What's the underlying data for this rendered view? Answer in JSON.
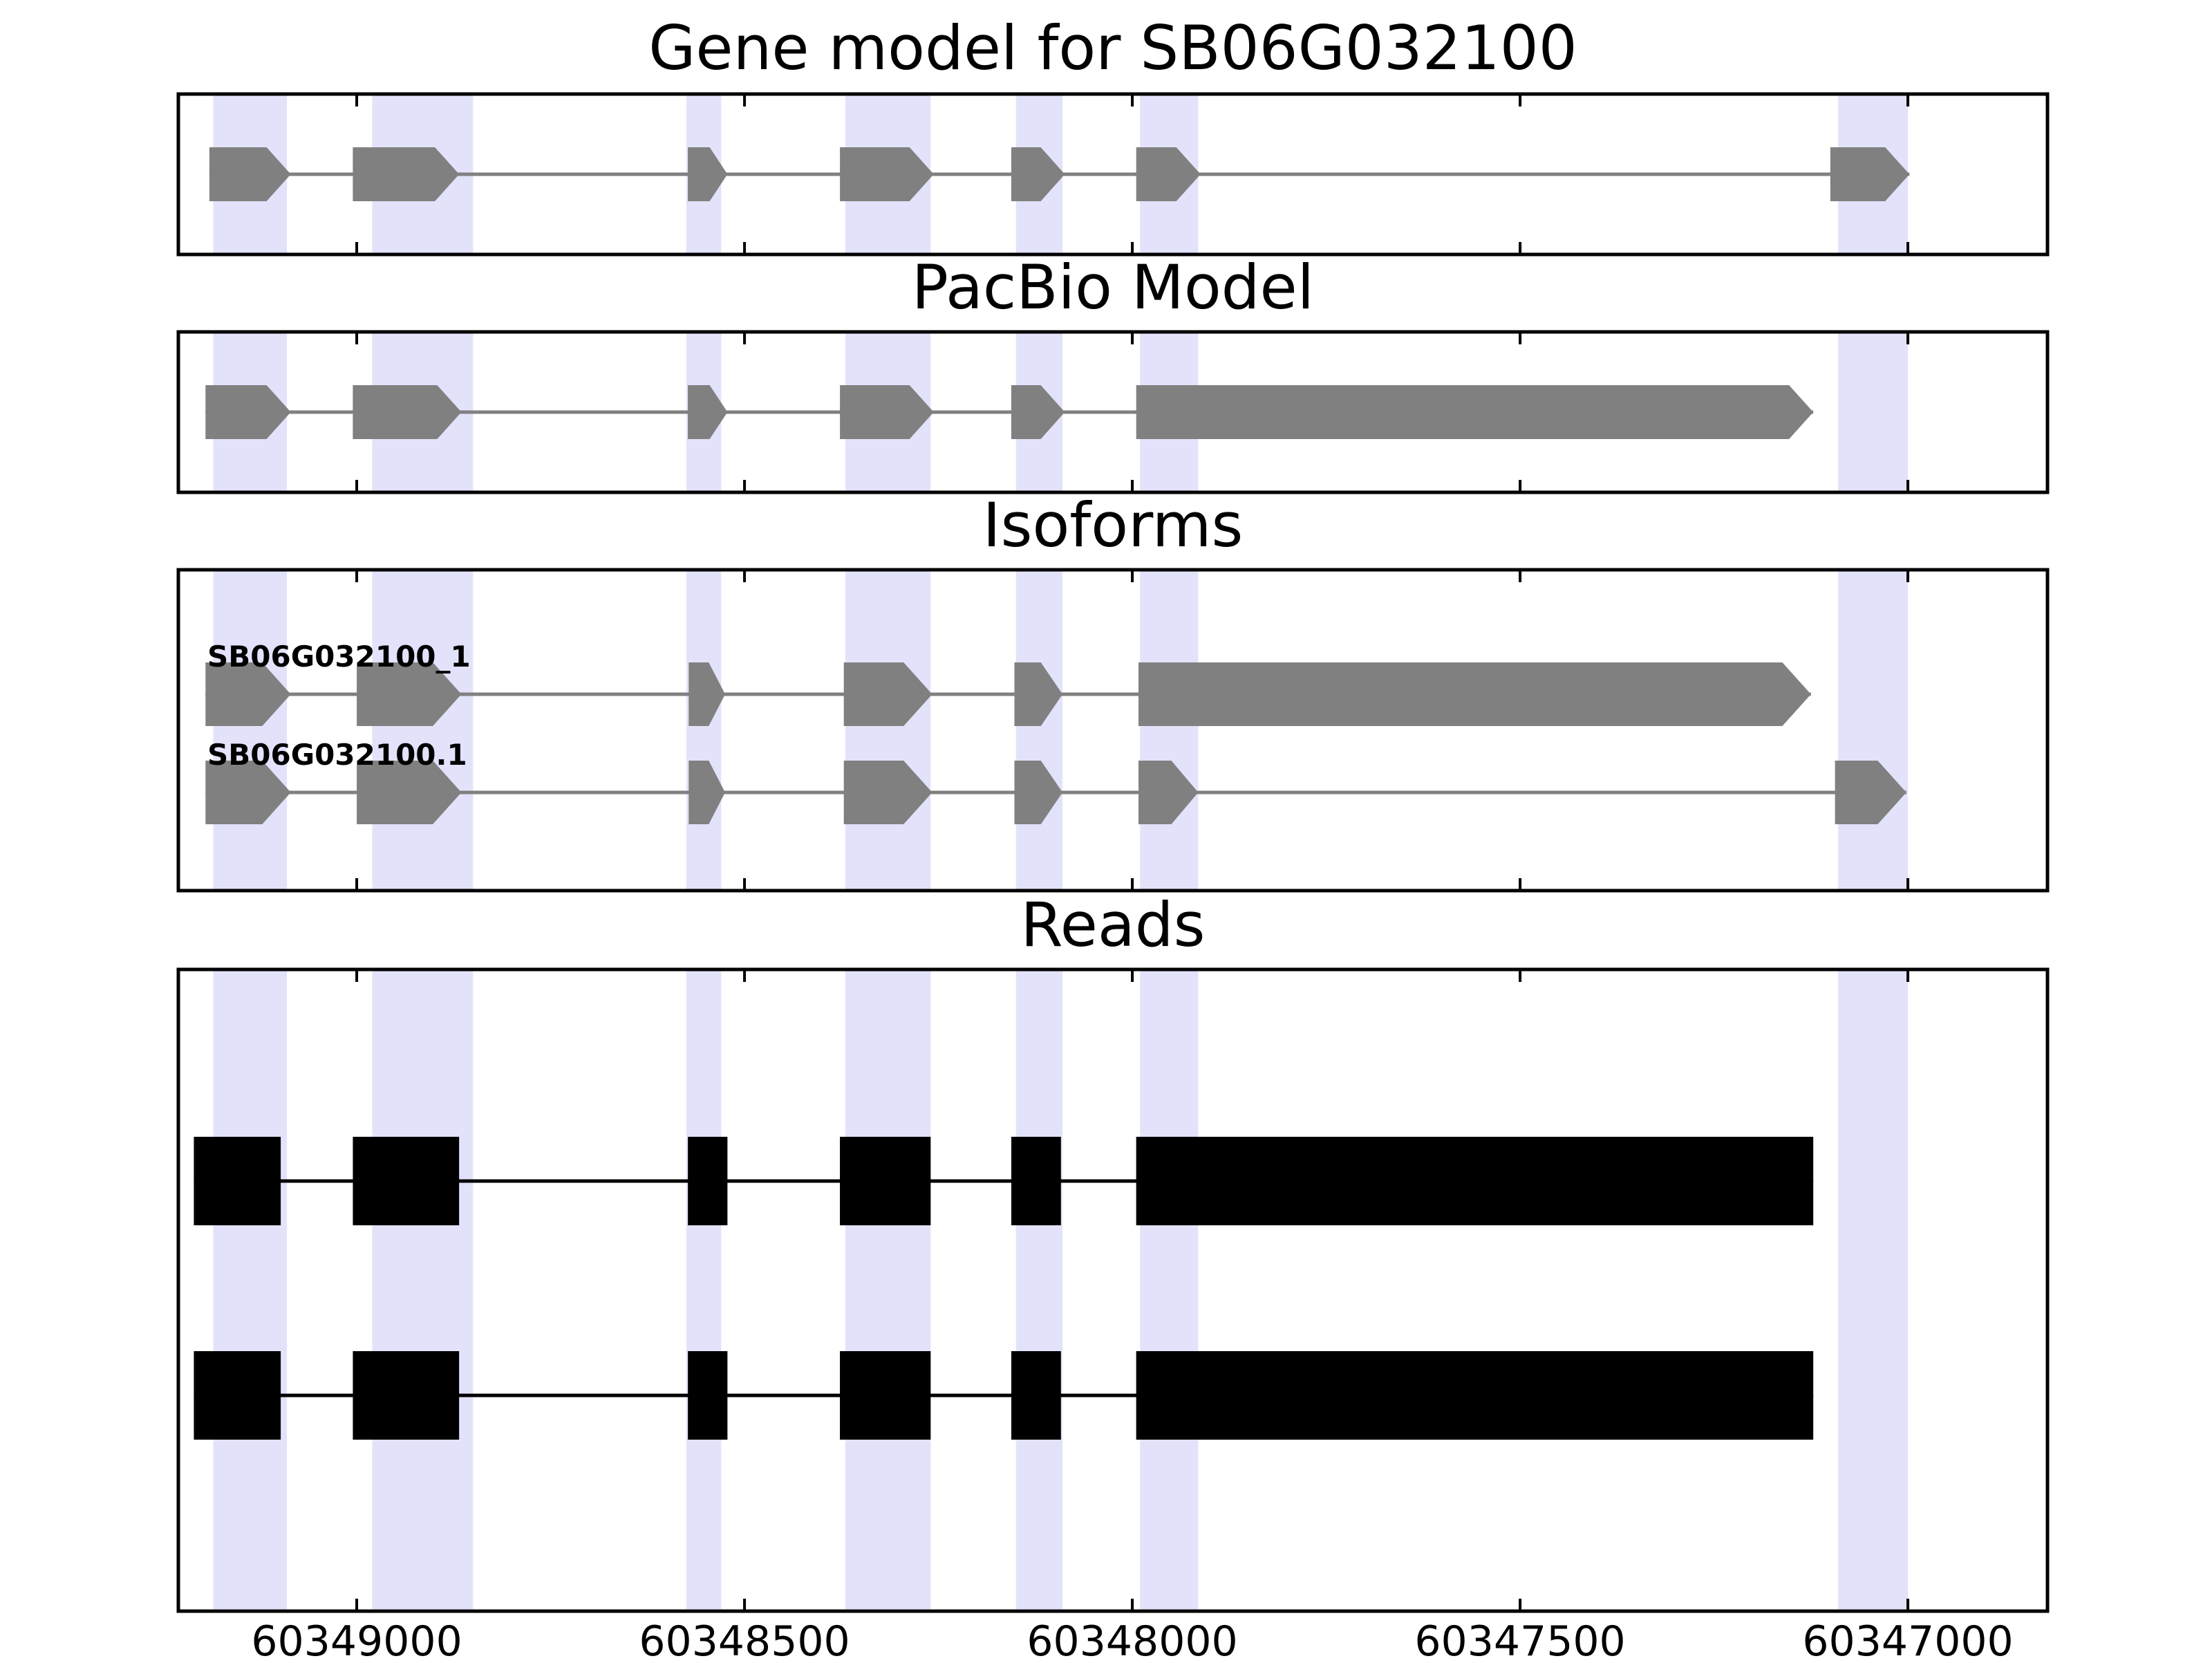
{
  "chart_data": {
    "type": "gene-structure",
    "x_axis": {
      "reversed": true,
      "xlim": [
        60349230,
        60346820
      ],
      "ticks": [
        60349000,
        60348500,
        60348000,
        60347500,
        60347000
      ],
      "tick_labels": [
        "60349000",
        "60348500",
        "60348000",
        "60347500",
        "60347000"
      ]
    },
    "exon_shading": [
      [
        60349185,
        60349090
      ],
      [
        60348980,
        60348850
      ],
      [
        60348575,
        60348530
      ],
      [
        60348370,
        60348260
      ],
      [
        60348150,
        60348090
      ],
      [
        60347990,
        60347915
      ],
      [
        60347090,
        60347000
      ]
    ],
    "panels": [
      {
        "title": "Gene model for SB06G032100",
        "kind": "gene_model",
        "models": [
          {
            "label": "",
            "exons": [
              [
                60349190,
                60349085
              ],
              [
                60349005,
                60348868
              ],
              [
                60348573,
                60348522
              ],
              [
                60348377,
                60348256
              ],
              [
                60348156,
                60348087
              ],
              [
                60347995,
                60347912
              ],
              [
                60347100,
                60346998
              ]
            ]
          }
        ]
      },
      {
        "title": "PacBio Model",
        "kind": "gene_model",
        "models": [
          {
            "label": "",
            "exons": [
              [
                60349195,
                60349085
              ],
              [
                60349005,
                60348865
              ],
              [
                60348573,
                60348522
              ],
              [
                60348377,
                60348256
              ],
              [
                60348156,
                60348087
              ],
              [
                60347995,
                60347122
              ]
            ]
          }
        ]
      },
      {
        "title": "Isoforms",
        "kind": "isoforms",
        "models": [
          {
            "label": "SB06G032100_1",
            "exons": [
              [
                60349195,
                60349085
              ],
              [
                60349000,
                60348865
              ],
              [
                60348572,
                60348525
              ],
              [
                60348372,
                60348258
              ],
              [
                60348152,
                60348090
              ],
              [
                60347992,
                60347125
              ]
            ]
          },
          {
            "label": "SB06G032100.1",
            "exons": [
              [
                60349195,
                60349085
              ],
              [
                60349000,
                60348865
              ],
              [
                60348572,
                60348525
              ],
              [
                60348372,
                60348258
              ],
              [
                60348152,
                60348090
              ],
              [
                60347992,
                60347915
              ],
              [
                60347094,
                60347002
              ]
            ]
          }
        ]
      },
      {
        "title": "Reads",
        "kind": "reads",
        "reads": [
          {
            "exons": [
              [
                60349210,
                60349098
              ],
              [
                60349005,
                60348868
              ],
              [
                60348573,
                60348522
              ],
              [
                60348377,
                60348260
              ],
              [
                60348156,
                60348092
              ],
              [
                60347995,
                60347122
              ]
            ]
          },
          {
            "exons": [
              [
                60349210,
                60349098
              ],
              [
                60349005,
                60348868
              ],
              [
                60348573,
                60348522
              ],
              [
                60348377,
                60348260
              ],
              [
                60348156,
                60348092
              ],
              [
                60347995,
                60347122
              ]
            ]
          }
        ]
      }
    ],
    "colors": {
      "shading": "#e2e2fb",
      "gene_feature": "#808080",
      "intron_line": "#808080",
      "read_feature": "#000000",
      "read_line": "#000000",
      "frame": "#000000"
    }
  }
}
